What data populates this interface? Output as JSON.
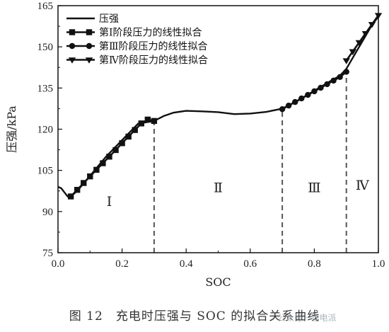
{
  "chart_data": {
    "type": "line",
    "xlabel": "SOC",
    "ylabel": "压强/kPa",
    "xlim": [
      0.0,
      1.0
    ],
    "ylim": [
      75,
      165
    ],
    "xticks": [
      "0.0",
      "0.2",
      "0.4",
      "0.6",
      "0.8",
      "1.0"
    ],
    "yticks": [
      "75",
      "90",
      "105",
      "120",
      "135",
      "150",
      "165"
    ],
    "legend_position": "top-left",
    "series": [
      {
        "name": "压强",
        "style": "solid",
        "x": [
          0.0,
          0.01,
          0.02,
          0.03,
          0.04,
          0.06,
          0.1,
          0.15,
          0.2,
          0.25,
          0.3,
          0.33,
          0.36,
          0.4,
          0.45,
          0.5,
          0.55,
          0.6,
          0.65,
          0.7,
          0.75,
          0.8,
          0.85,
          0.88,
          0.9,
          0.92,
          0.95,
          0.98,
          1.0
        ],
        "y": [
          99,
          98.5,
          97,
          95.5,
          95.5,
          97.5,
          103,
          110,
          116,
          122,
          123,
          124.8,
          126,
          126.7,
          126.5,
          126.2,
          125.5,
          125.7,
          126.3,
          127.5,
          130.5,
          134,
          137.5,
          139.5,
          142,
          146,
          152,
          158,
          161
        ]
      },
      {
        "name": "第Ⅰ阶段压力的线性拟合",
        "marker": "square",
        "x": [
          0.04,
          0.06,
          0.08,
          0.1,
          0.12,
          0.14,
          0.16,
          0.18,
          0.2,
          0.22,
          0.24,
          0.26,
          0.28,
          0.3
        ],
        "y": [
          95.5,
          97.9,
          100.4,
          102.8,
          105.2,
          107.6,
          110,
          112.4,
          114.9,
          117.3,
          119.7,
          122.1,
          123.5,
          123
        ]
      },
      {
        "name": "第Ⅲ阶段压力的线性拟合",
        "marker": "circle",
        "x": [
          0.7,
          0.72,
          0.74,
          0.76,
          0.78,
          0.8,
          0.82,
          0.84,
          0.86,
          0.88,
          0.9
        ],
        "y": [
          127.3,
          128.6,
          129.9,
          131.2,
          132.5,
          133.8,
          135.1,
          136.4,
          137.7,
          139,
          140.9
        ]
      },
      {
        "name": "第Ⅳ阶段压力的线性拟合",
        "marker": "triangle-down",
        "x": [
          0.9,
          0.92,
          0.94,
          0.96,
          0.98,
          1.0
        ],
        "y": [
          145,
          148.3,
          151.6,
          154.9,
          158.2,
          161.5
        ]
      }
    ],
    "boundaries_x": [
      0.3,
      0.7,
      0.9
    ],
    "boundary_style": "dashed",
    "regions": [
      {
        "label": "Ⅰ",
        "x": 0.16,
        "y": 92
      },
      {
        "label": "Ⅱ",
        "x": 0.5,
        "y": 97
      },
      {
        "label": "Ⅲ",
        "x": 0.8,
        "y": 97
      },
      {
        "label": "Ⅳ",
        "x": 0.95,
        "y": 98
      }
    ]
  },
  "caption": "图 12　充电时压强与 SOC 的拟合关系曲线",
  "watermark": "公众号 · 锂电派"
}
